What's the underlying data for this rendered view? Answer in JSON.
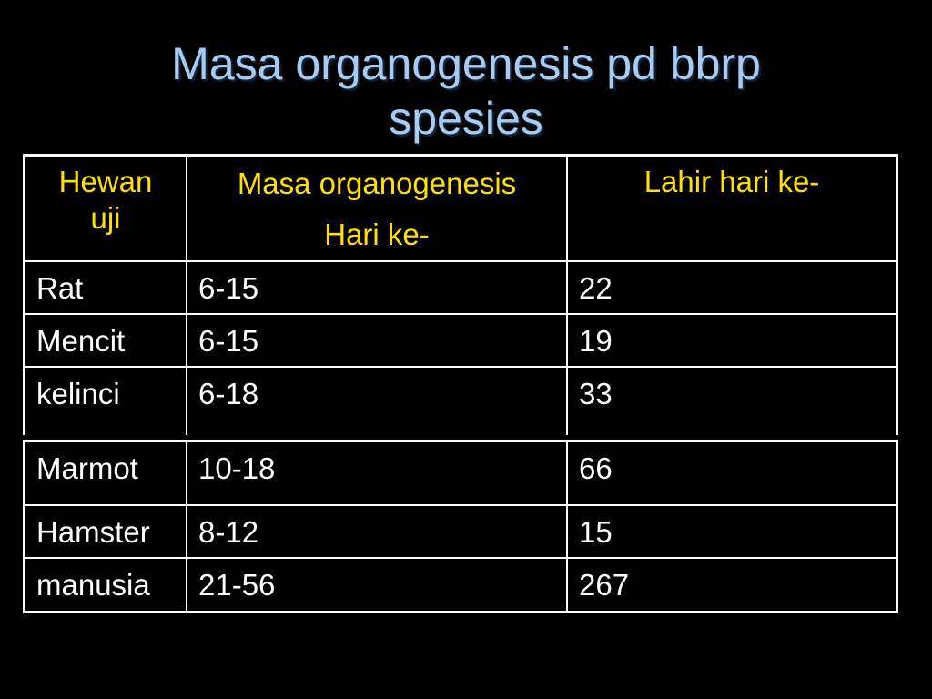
{
  "slide": {
    "title_line1": "Masa organogenesis pd bbrp",
    "title_line2": "spesies"
  },
  "table": {
    "headers": {
      "col1_line1": "Hewan",
      "col1_line2": "uji",
      "col2_line1": "Masa organogenesis",
      "col2_line2": "Hari ke-",
      "col3": "Lahir hari ke-"
    },
    "rows": [
      {
        "hewan": "Rat",
        "organogenesis": "6-15",
        "lahir": "22"
      },
      {
        "hewan": "Mencit",
        "organogenesis": "6-15",
        "lahir": "19"
      },
      {
        "hewan": "kelinci",
        "organogenesis": "6-18",
        "lahir": "33"
      },
      {
        "hewan": "Marmot",
        "organogenesis": "10-18",
        "lahir": "66"
      },
      {
        "hewan": "Hamster",
        "organogenesis": "8-12",
        "lahir": "15"
      },
      {
        "hewan": "manusia",
        "organogenesis": "21-56",
        "lahir": "267"
      }
    ]
  },
  "colors": {
    "background": "#000000",
    "title": "#a8ccf0",
    "header_text": "#ffe000",
    "body_text": "#ffffff",
    "border": "#ffffff"
  }
}
